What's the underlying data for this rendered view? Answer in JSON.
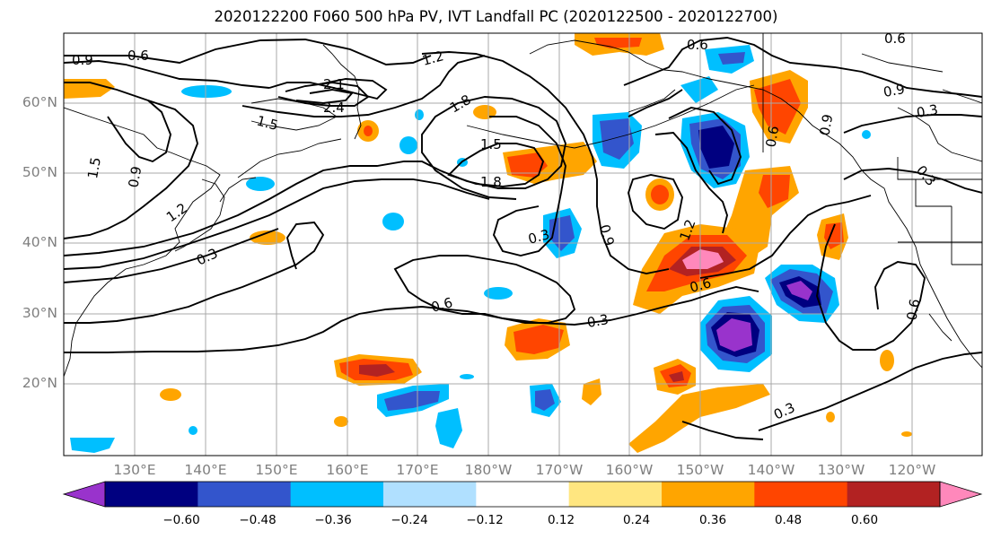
{
  "title": "2020122200 F060 500 hPa PV, IVT Landfall PC (2020122500 - 2020122700)",
  "lat_labels": [
    "60°N",
    "50°N",
    "40°N",
    "30°N",
    "20°N"
  ],
  "lon_labels": [
    "130°E",
    "140°E",
    "150°E",
    "160°E",
    "170°E",
    "180°W",
    "170°W",
    "160°W",
    "150°W",
    "140°W",
    "130°W",
    "120°W"
  ],
  "colorbar": {
    "colors": [
      "#9933cc",
      "#000080",
      "#3355cc",
      "#00bfff",
      "#b0e0ff",
      "#ffffff",
      "#ffe680",
      "#ffa500",
      "#ff4500",
      "#b22222",
      "#ff88bb"
    ],
    "tick_labels": [
      "−0.60",
      "−0.48",
      "−0.36",
      "−0.24",
      "−0.12",
      "0.12",
      "0.24",
      "0.36",
      "0.48",
      "0.60"
    ]
  },
  "contour_labels": [
    "0.9",
    "0.6",
    "1.2",
    "1.8",
    "1.5",
    "1.5",
    "1.8",
    "2.1",
    "2.4",
    "1.5",
    "0.9",
    "1.2",
    "0.3",
    "0.3",
    "0.6",
    "0.3",
    "0.6",
    "0.9",
    "0.6",
    "0.9",
    "0.3",
    "0.6",
    "0.9",
    "0.3",
    "0.6",
    "0.6",
    "0.3",
    "1.2"
  ]
}
